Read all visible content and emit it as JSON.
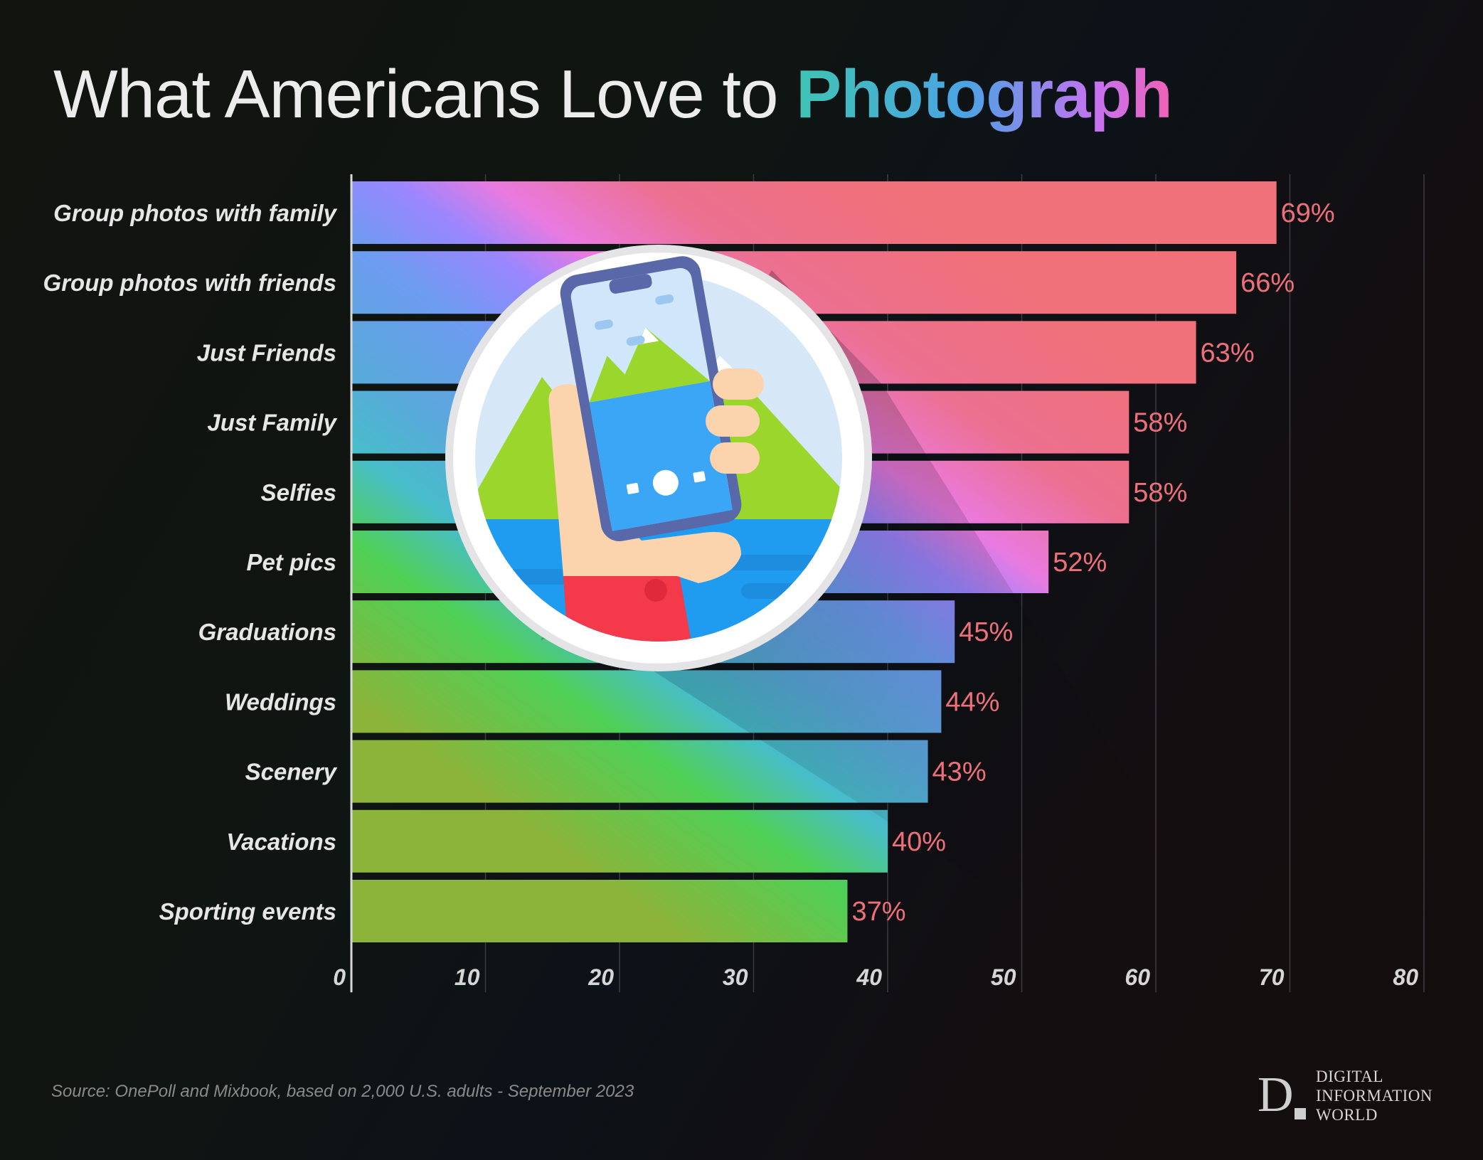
{
  "header": {
    "title_main": "What Americans Love to ",
    "title_accent": "Photograph"
  },
  "chart_data": {
    "type": "bar",
    "orientation": "horizontal",
    "categories": [
      "Group photos with family",
      "Group photos with friends",
      "Just Friends",
      "Just Family",
      "Selfies",
      "Pet pics",
      "Graduations",
      "Weddings",
      "Scenery",
      "Vacations",
      "Sporting events"
    ],
    "values": [
      69,
      66,
      63,
      58,
      58,
      52,
      45,
      44,
      43,
      40,
      37
    ],
    "value_labels": [
      "69%",
      "66%",
      "63%",
      "58%",
      "58%",
      "52%",
      "45%",
      "44%",
      "43%",
      "40%",
      "37%"
    ],
    "xlim": [
      0,
      80
    ],
    "xticks": [
      "0",
      "10",
      "20",
      "30",
      "40",
      "50",
      "60",
      "70",
      "80"
    ],
    "grid": true,
    "colors": {
      "gradient": [
        "#8db53a",
        "#4fcf55",
        "#47bdc9",
        "#5aa8dc",
        "#6d9cf0",
        "#9a86ff",
        "#e97ae0",
        "#ee6f8a",
        "#f0717a"
      ],
      "value_label": "#ef6f7a"
    }
  },
  "illustration": {
    "icon": "phone-photo-icon"
  },
  "footer": {
    "source": "Source: OnePoll and Mixbook, based on 2,000 U.S. adults - September 2023",
    "brand_letter": "D",
    "brand_text": "DIGITAL\nINFORMATION\nWORLD"
  }
}
